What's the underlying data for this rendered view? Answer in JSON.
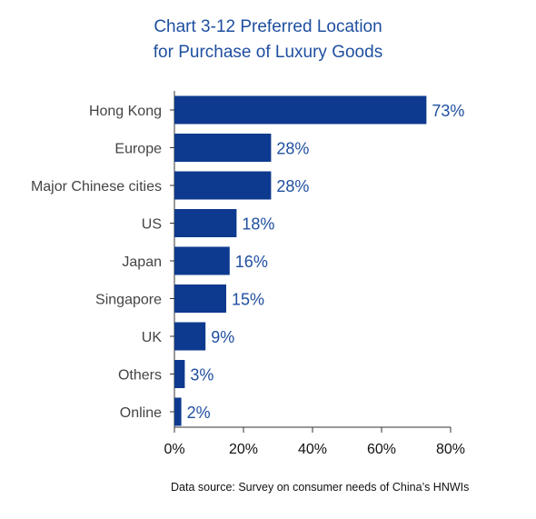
{
  "chart_data": {
    "type": "bar",
    "orientation": "horizontal",
    "title_lines": [
      "Chart 3-12 Preferred Location",
      "for Purchase of Luxury Goods"
    ],
    "categories": [
      "Hong Kong",
      "Europe",
      "Major Chinese cities",
      "US",
      "Japan",
      "Singapore",
      "UK",
      "Others",
      "Online"
    ],
    "values": [
      73,
      28,
      28,
      18,
      16,
      15,
      9,
      3,
      2
    ],
    "value_labels": [
      "73%",
      "28%",
      "28%",
      "18%",
      "16%",
      "15%",
      "9%",
      "3%",
      "2%"
    ],
    "xlim": [
      0,
      80
    ],
    "xticks": [
      0,
      20,
      40,
      60,
      80
    ],
    "xtick_labels": [
      "0%",
      "20%",
      "40%",
      "60%",
      "80%"
    ],
    "xlabel": "",
    "ylabel": "",
    "grid": false,
    "legend": "none",
    "bar_color": "#0d3a8e",
    "label_color": "#1f4fa0",
    "source_note": "Data source: Survey on consumer needs of China’s HNWIs"
  }
}
